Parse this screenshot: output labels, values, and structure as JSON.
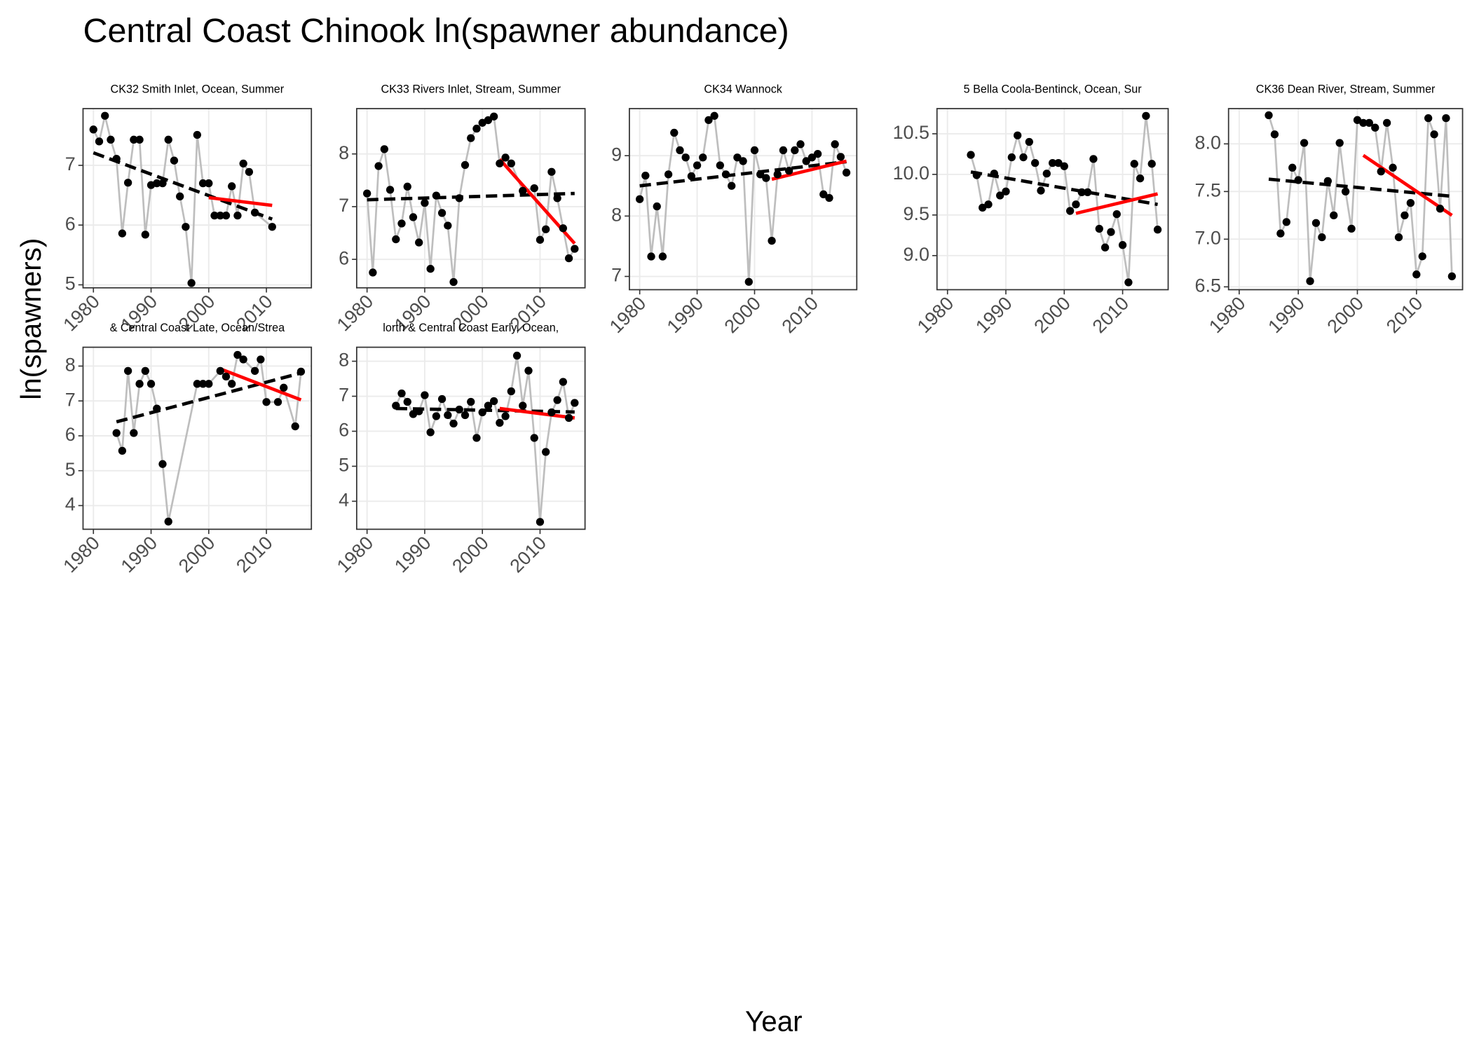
{
  "title": "Central Coast Chinook ln(spawner abundance)",
  "x_label": "Year",
  "y_label": "ln(spawners)",
  "chart_data": [
    {
      "type": "line",
      "title": "CK32 Smith Inlet, Ocean, Summer",
      "x": [
        1980,
        1981,
        1982,
        1983,
        1984,
        1985,
        1986,
        1987,
        1988,
        1989,
        1990,
        1991,
        1992,
        1993,
        1994,
        1995,
        1996,
        1997,
        1998,
        1999,
        2000,
        2001,
        2002,
        2003,
        2004,
        2005,
        2006,
        2007,
        2008,
        2011
      ],
      "values": [
        7.6,
        7.4,
        7.83,
        7.43,
        7.11,
        5.86,
        6.71,
        7.43,
        7.43,
        5.84,
        6.67,
        6.7,
        6.7,
        7.43,
        7.08,
        6.48,
        5.97,
        5.03,
        7.51,
        6.7,
        6.7,
        6.16,
        6.16,
        6.16,
        6.65,
        6.16,
        7.03,
        6.89,
        6.21,
        5.97
      ],
      "color": "#000000",
      "line_color": "#bebebe",
      "fits": [
        {
          "x": [
            1980,
            2011
          ],
          "values": [
            7.21,
            6.1
          ],
          "color": "#000000",
          "dashed": true
        },
        {
          "x": [
            2000,
            2011
          ],
          "values": [
            6.46,
            6.33
          ],
          "color": "#ff0000",
          "dashed": false
        }
      ],
      "xlim": [
        1978.2,
        2017.8
      ],
      "xticks": [
        1980,
        1990,
        2000,
        2010
      ],
      "ylim": [
        4.95,
        7.95
      ],
      "yticks": [
        5,
        6,
        7
      ],
      "grid": true
    },
    {
      "type": "line",
      "title": "CK33 Rivers Inlet, Stream, Summer",
      "x": [
        1980,
        1981,
        1982,
        1983,
        1984,
        1985,
        1986,
        1987,
        1988,
        1989,
        1990,
        1991,
        1992,
        1993,
        1994,
        1995,
        1996,
        1997,
        1998,
        1999,
        2000,
        2001,
        2002,
        2003,
        2004,
        2005,
        2007,
        2009,
        2010,
        2011,
        2012,
        2013,
        2014,
        2015,
        2016
      ],
      "values": [
        7.25,
        5.75,
        7.77,
        8.09,
        7.32,
        6.38,
        6.68,
        7.38,
        6.8,
        6.32,
        7.07,
        5.82,
        7.21,
        6.88,
        6.64,
        5.57,
        7.16,
        7.79,
        8.3,
        8.48,
        8.59,
        8.64,
        8.71,
        7.82,
        7.93,
        7.82,
        7.3,
        7.35,
        6.37,
        6.57,
        7.66,
        7.16,
        6.59,
        6.02,
        6.2
      ],
      "color": "#000000",
      "line_color": "#bebebe",
      "fits": [
        {
          "x": [
            1980,
            2016
          ],
          "values": [
            7.13,
            7.25
          ],
          "color": "#000000",
          "dashed": true
        },
        {
          "x": [
            2003,
            2016
          ],
          "values": [
            7.9,
            6.3
          ],
          "color": "#ff0000",
          "dashed": false
        }
      ],
      "xlim": [
        1978.2,
        2017.8
      ],
      "xticks": [
        1980,
        1990,
        2000,
        2010
      ],
      "ylim": [
        5.46,
        8.86
      ],
      "yticks": [
        6,
        7,
        8
      ],
      "grid": true
    },
    {
      "type": "line",
      "title": "CK34 Wannock",
      "x": [
        1980,
        1981,
        1982,
        1983,
        1984,
        1985,
        1986,
        1987,
        1988,
        1989,
        1990,
        1991,
        1992,
        1993,
        1994,
        1995,
        1996,
        1997,
        1998,
        1999,
        2000,
        2001,
        2002,
        2003,
        2004,
        2005,
        2006,
        2007,
        2008,
        2009,
        2010,
        2011,
        2012,
        2013,
        2014,
        2015,
        2016
      ],
      "values": [
        8.28,
        8.67,
        7.33,
        8.16,
        7.33,
        8.69,
        9.38,
        9.09,
        8.97,
        8.66,
        8.84,
        8.97,
        9.59,
        9.66,
        8.84,
        8.69,
        8.5,
        8.97,
        8.91,
        6.91,
        9.09,
        8.69,
        8.63,
        7.59,
        8.69,
        9.09,
        8.75,
        9.09,
        9.19,
        8.91,
        8.97,
        9.03,
        8.36,
        8.3,
        9.19,
        8.98,
        8.72
      ],
      "color": "#000000",
      "line_color": "#bebebe",
      "fits": [
        {
          "x": [
            1980,
            2016
          ],
          "values": [
            8.5,
            8.9
          ],
          "color": "#000000",
          "dashed": true
        },
        {
          "x": [
            2003,
            2016
          ],
          "values": [
            8.61,
            8.91
          ],
          "color": "#ff0000",
          "dashed": false
        }
      ],
      "xlim": [
        1978.2,
        2017.8
      ],
      "xticks": [
        1980,
        1990,
        2000,
        2010
      ],
      "ylim": [
        6.78,
        9.78
      ],
      "yticks": [
        7,
        8,
        9
      ],
      "grid": true
    },
    {
      "type": "line",
      "title": "5 Bella Coola-Bentinck, Ocean, Sur",
      "x": [
        1984,
        1985,
        1986,
        1987,
        1988,
        1989,
        1990,
        1991,
        1992,
        1993,
        1994,
        1995,
        1996,
        1997,
        1998,
        1999,
        2000,
        2001,
        2002,
        2003,
        2004,
        2005,
        2006,
        2007,
        2008,
        2009,
        2010,
        2011,
        2012,
        2013,
        2014,
        2015,
        2016
      ],
      "values": [
        10.24,
        9.99,
        9.59,
        9.63,
        10.01,
        9.74,
        9.79,
        10.21,
        10.48,
        10.21,
        10.4,
        10.14,
        9.8,
        10.01,
        10.14,
        10.14,
        10.1,
        9.55,
        9.63,
        9.78,
        9.78,
        10.19,
        9.33,
        9.1,
        9.29,
        9.51,
        9.13,
        8.67,
        10.13,
        9.95,
        10.72,
        10.13,
        9.32
      ],
      "color": "#000000",
      "line_color": "#bebebe",
      "fits": [
        {
          "x": [
            1984,
            2016
          ],
          "values": [
            10.03,
            9.63
          ],
          "color": "#000000",
          "dashed": true
        },
        {
          "x": [
            2002,
            2016
          ],
          "values": [
            9.52,
            9.76
          ],
          "color": "#ff0000",
          "dashed": false
        }
      ],
      "xlim": [
        1978.2,
        2017.8
      ],
      "xticks": [
        1980,
        1990,
        2000,
        2010
      ],
      "ylim": [
        8.58,
        10.81
      ],
      "yticks": [
        {
          "value": 9,
          "label": "9.0"
        },
        9.5,
        {
          "value": 10,
          "label": "10.0"
        },
        10.5
      ],
      "grid": true
    },
    {
      "type": "line",
      "title": "CK36 Dean River, Stream, Summer",
      "x": [
        1985,
        1986,
        1987,
        1988,
        1989,
        1990,
        1991,
        1992,
        1993,
        1994,
        1995,
        1996,
        1997,
        1998,
        1999,
        2000,
        2001,
        2002,
        2003,
        2004,
        2005,
        2006,
        2007,
        2008,
        2009,
        2010,
        2011,
        2012,
        2013,
        2014,
        2015,
        2016
      ],
      "values": [
        8.3,
        8.1,
        7.06,
        7.18,
        7.75,
        7.62,
        8.01,
        6.56,
        7.17,
        7.02,
        7.61,
        7.25,
        8.01,
        7.5,
        7.11,
        8.25,
        8.22,
        8.22,
        8.17,
        7.71,
        8.22,
        7.75,
        7.02,
        7.25,
        7.38,
        6.63,
        6.82,
        8.27,
        8.1,
        7.32,
        8.27,
        6.61
      ],
      "color": "#000000",
      "line_color": "#bebebe",
      "fits": [
        {
          "x": [
            1985,
            2016
          ],
          "values": [
            7.63,
            7.45
          ],
          "color": "#000000",
          "dashed": true
        },
        {
          "x": [
            2001,
            2016
          ],
          "values": [
            7.88,
            7.25
          ],
          "color": "#ff0000",
          "dashed": false
        }
      ],
      "xlim": [
        1978.2,
        2017.8
      ],
      "xticks": [
        1980,
        1990,
        2000,
        2010
      ],
      "ylim": [
        6.47,
        8.37
      ],
      "yticks": [
        {
          "value": 6.5,
          "label": "6.5"
        },
        {
          "value": 7,
          "label": "7.0"
        },
        7.5,
        {
          "value": 8,
          "label": "8.0"
        }
      ],
      "grid": true
    },
    {
      "type": "line",
      "title": "& Central Coast Late, Ocean/Strea",
      "x": [
        1984,
        1985,
        1986,
        1987,
        1988,
        1989,
        1990,
        1991,
        1992,
        1993,
        1998,
        1999,
        2000,
        2002,
        2003,
        2004,
        2005,
        2006,
        2008,
        2009,
        2010,
        2012,
        2013,
        2015,
        2016
      ],
      "values": [
        6.08,
        5.57,
        7.86,
        6.08,
        7.49,
        7.86,
        7.49,
        6.78,
        5.19,
        3.54,
        7.49,
        7.49,
        7.49,
        7.86,
        7.7,
        7.49,
        8.32,
        8.19,
        7.86,
        8.19,
        6.97,
        6.97,
        7.38,
        6.27,
        7.84
      ],
      "color": "#000000",
      "line_color": "#bebebe",
      "fits": [
        {
          "x": [
            1984,
            2016
          ],
          "values": [
            6.4,
            7.8
          ],
          "color": "#000000",
          "dashed": true
        },
        {
          "x": [
            2002,
            2016
          ],
          "values": [
            7.92,
            7.03
          ],
          "color": "#ff0000",
          "dashed": false
        }
      ],
      "xlim": [
        1978.2,
        2017.8
      ],
      "xticks": [
        1980,
        1990,
        2000,
        2010
      ],
      "ylim": [
        3.32,
        8.54
      ],
      "yticks": [
        4,
        5,
        6,
        7,
        8
      ],
      "grid": true
    },
    {
      "type": "line",
      "title": "lorth & Central Coast Early, Ocean,",
      "x": [
        1985,
        1986,
        1987,
        1988,
        1989,
        1990,
        1991,
        1992,
        1993,
        1994,
        1995,
        1996,
        1997,
        1998,
        1999,
        2000,
        2001,
        2002,
        2003,
        2004,
        2005,
        2006,
        2007,
        2008,
        2009,
        2010,
        2011,
        2012,
        2013,
        2014,
        2015,
        2016
      ],
      "values": [
        6.73,
        7.08,
        6.84,
        6.49,
        6.57,
        7.03,
        5.97,
        6.43,
        6.92,
        6.46,
        6.22,
        6.62,
        6.46,
        6.84,
        5.81,
        6.54,
        6.73,
        6.86,
        6.24,
        6.43,
        7.14,
        8.16,
        6.73,
        7.73,
        5.81,
        3.41,
        5.41,
        6.54,
        6.89,
        7.41,
        6.38,
        6.81
      ],
      "color": "#000000",
      "line_color": "#bebebe",
      "fits": [
        {
          "x": [
            1985,
            2016
          ],
          "values": [
            6.65,
            6.55
          ],
          "color": "#000000",
          "dashed": true
        },
        {
          "x": [
            2003,
            2016
          ],
          "values": [
            6.65,
            6.38
          ],
          "color": "#ff0000",
          "dashed": false
        }
      ],
      "xlim": [
        1978.2,
        2017.8
      ],
      "xticks": [
        1980,
        1990,
        2000,
        2010
      ],
      "ylim": [
        3.2,
        8.4
      ],
      "yticks": [
        4,
        5,
        6,
        7,
        8
      ],
      "grid": true
    }
  ]
}
